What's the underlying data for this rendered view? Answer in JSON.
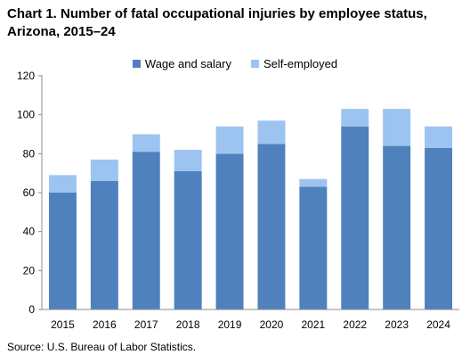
{
  "title": "Chart 1. Number of fatal occupational injuries by employee status, Arizona, 2015–24",
  "source": "Source: U.S. Bureau of Labor Statistics.",
  "colors": {
    "wage": "#4f81bd",
    "self": "#9dc3f0",
    "axis": "#8c8c8c",
    "grid": "#d9d9d9"
  },
  "chart_data": {
    "type": "bar",
    "stacked": true,
    "categories": [
      "2015",
      "2016",
      "2017",
      "2018",
      "2019",
      "2020",
      "2021",
      "2022",
      "2023",
      "2024"
    ],
    "series": [
      {
        "name": "Wage and salary",
        "values": [
          60,
          66,
          81,
          71,
          80,
          85,
          63,
          94,
          84,
          83
        ]
      },
      {
        "name": "Self-employed",
        "values": [
          9,
          11,
          9,
          11,
          14,
          12,
          4,
          9,
          19,
          11
        ]
      }
    ],
    "ylim": [
      0,
      120
    ],
    "yticks": [
      0,
      20,
      40,
      60,
      80,
      100,
      120
    ],
    "legend": "top-center",
    "grid": false
  }
}
